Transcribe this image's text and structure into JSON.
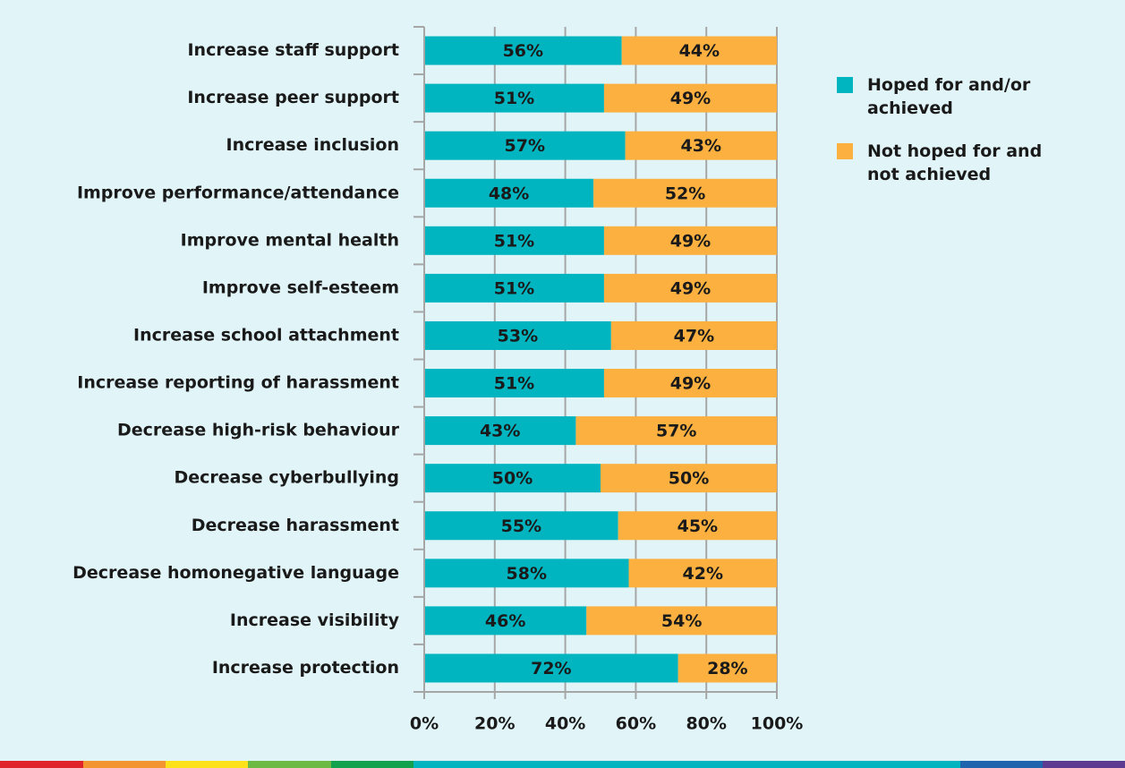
{
  "chart_data": {
    "type": "bar",
    "orientation": "horizontal",
    "stacked": true,
    "categories": [
      "Increase staff support",
      "Increase peer support",
      "Increase inclusion",
      "Improve performance/attendance",
      "Improve mental health",
      "Improve self-esteem",
      "Increase school attachment",
      "Increase reporting of harassment",
      "Decrease high-risk behaviour",
      "Decrease cyberbullying",
      "Decrease harassment",
      "Decrease homonegative language",
      "Increase visibility",
      "Increase protection"
    ],
    "series": [
      {
        "name": "Hoped for and/or achieved",
        "color": "#00b5c0",
        "values": [
          56,
          51,
          57,
          48,
          51,
          51,
          53,
          51,
          43,
          50,
          55,
          58,
          46,
          72
        ],
        "value_labels": [
          "56%",
          "51%",
          "57%",
          "48%",
          "51%",
          "51%",
          "53%",
          "51%",
          "43%",
          "50%",
          "55%",
          "58%",
          "46%",
          "72%"
        ]
      },
      {
        "name": "Not hoped for and not achieved",
        "color": "#fbb040",
        "values": [
          44,
          49,
          43,
          52,
          49,
          49,
          47,
          49,
          57,
          50,
          45,
          42,
          54,
          28
        ],
        "value_labels": [
          "44%",
          "49%",
          "43%",
          "52%",
          "49%",
          "49%",
          "47%",
          "49%",
          "57%",
          "50%",
          "45%",
          "42%",
          "54%",
          "28%"
        ]
      }
    ],
    "xlim": [
      0,
      100
    ],
    "xticks": [
      {
        "value": 0,
        "label": "0%"
      },
      {
        "value": 20,
        "label": "20%"
      },
      {
        "value": 40,
        "label": "40%"
      },
      {
        "value": 60,
        "label": "60%"
      },
      {
        "value": 80,
        "label": "80%"
      },
      {
        "value": 100,
        "label": "100%"
      }
    ],
    "grid": true,
    "legend": "right"
  }
}
